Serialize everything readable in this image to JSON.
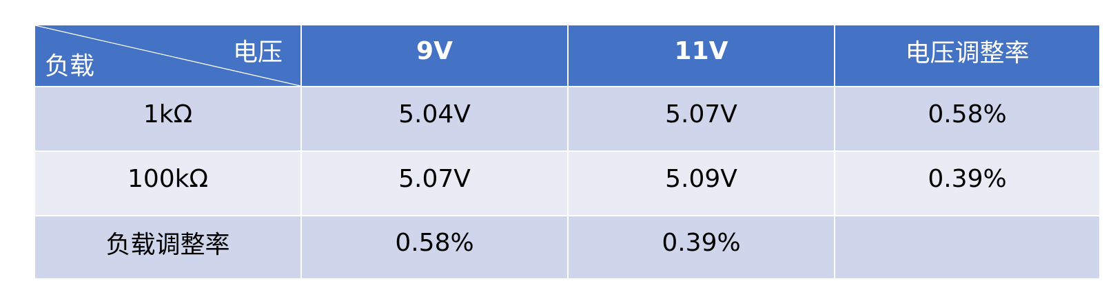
{
  "table": {
    "corner": {
      "top_label": "电压",
      "bottom_label": "负载"
    },
    "headers": [
      "9V",
      "11V",
      "电压调整率"
    ],
    "rows": [
      {
        "label": "1kΩ",
        "cells": [
          "5.04V",
          "5.07V",
          "0.58%"
        ]
      },
      {
        "label": "100kΩ",
        "cells": [
          "5.07V",
          "5.09V",
          "0.39%"
        ]
      },
      {
        "label": "负载调整率",
        "cells": [
          "0.58%",
          "0.39%",
          ""
        ]
      }
    ]
  },
  "colors": {
    "header": "#4472c4",
    "row_dark": "#cfd5ea",
    "row_light": "#e9ebf5"
  }
}
